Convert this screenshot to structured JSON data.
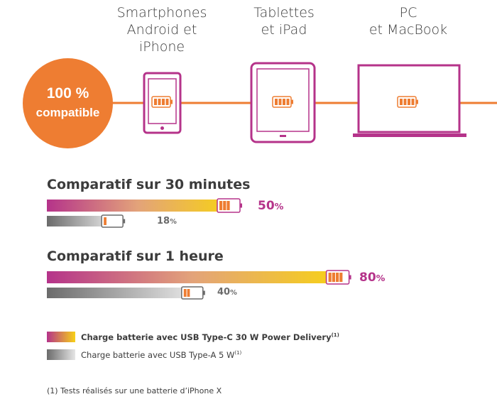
{
  "devices": [
    {
      "line1": "Smartphones",
      "line2": "Android et iPhone"
    },
    {
      "line1": "Tablettes",
      "line2": "et iPad"
    },
    {
      "line1": "PC",
      "line2": "et MacBook"
    }
  ],
  "badge": {
    "line1": "100 %",
    "line2": "compatible"
  },
  "chart_data": [
    {
      "type": "bar",
      "title": "Comparatif sur 30 minutes",
      "series": [
        {
          "name": "Charge batterie avec USB Type-C 30 W Power Delivery",
          "values": [
            50
          ],
          "label": "50",
          "unit": "%"
        },
        {
          "name": "Charge batterie avec USB Type-A 5 W",
          "values": [
            18
          ],
          "label": "18",
          "unit": "%"
        }
      ]
    },
    {
      "type": "bar",
      "title": "Comparatif sur 1 heure",
      "series": [
        {
          "name": "Charge batterie avec USB Type-C 30 W Power Delivery",
          "values": [
            80
          ],
          "label": "80",
          "unit": "%"
        },
        {
          "name": "Charge batterie avec USB Type-A 5 W",
          "values": [
            40
          ],
          "label": "40",
          "unit": "%"
        }
      ]
    }
  ],
  "legend": [
    {
      "text": "Charge batterie avec USB Type-C 30 W Power Delivery",
      "sup": "(1)"
    },
    {
      "text": "Charge batterie avec USB Type-A 5 W",
      "sup": "(1)"
    }
  ],
  "footnote": "(1) Tests réalisés sur une batterie d’iPhone X",
  "colors": {
    "accent_orange": "#ee7d32",
    "magenta": "#b5338a",
    "yellow": "#f7d117",
    "grey_dark": "#6b6b6b",
    "grey_light": "#e6e6e6"
  }
}
